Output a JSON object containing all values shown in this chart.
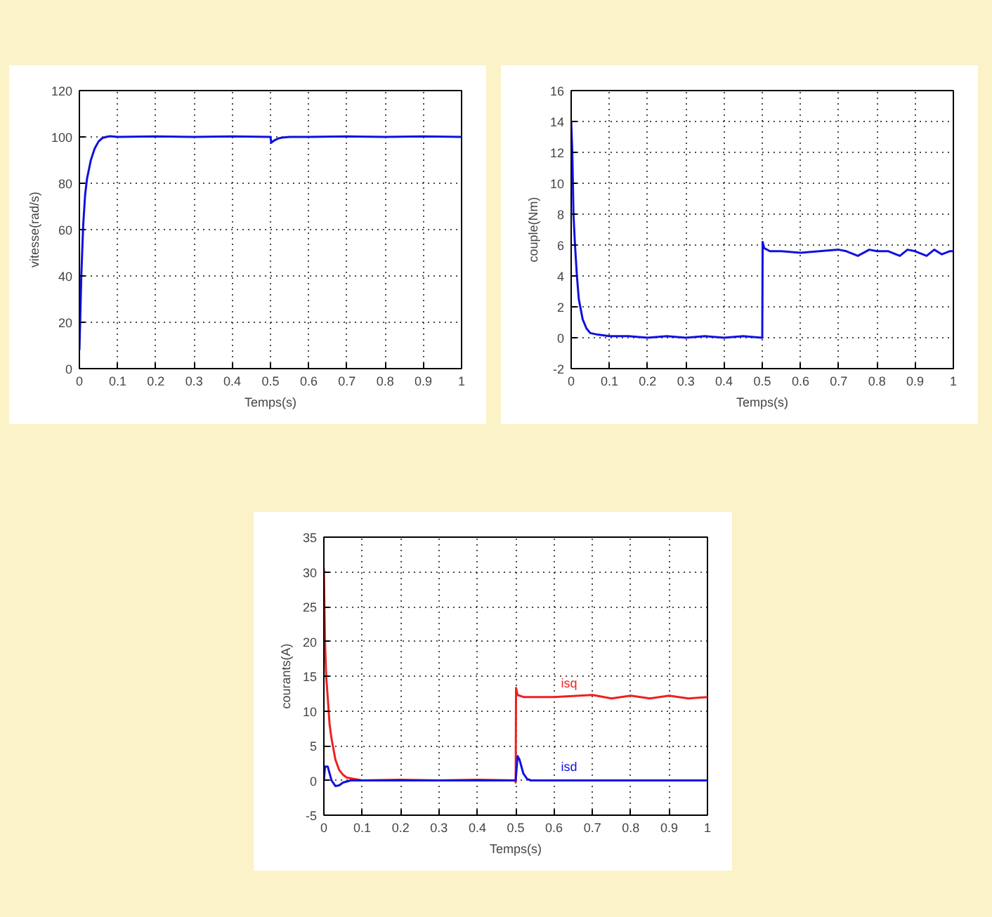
{
  "chart_data": [
    {
      "type": "line",
      "xlabel": "Temps(s)",
      "ylabel": "vitesse(rad/s)",
      "xlim": [
        0,
        1
      ],
      "ylim": [
        0,
        120
      ],
      "xticks": [
        0,
        0.1,
        0.2,
        0.3,
        0.4,
        0.5,
        0.6,
        0.7,
        0.8,
        0.9,
        1
      ],
      "yticks": [
        0,
        20,
        40,
        60,
        80,
        100,
        120
      ],
      "grid": true,
      "line_style": "solid",
      "series": [
        {
          "color": "#1010e0",
          "x": [
            0,
            0.002,
            0.005,
            0.01,
            0.015,
            0.02,
            0.03,
            0.04,
            0.05,
            0.06,
            0.07,
            0.08,
            0.1,
            0.2,
            0.3,
            0.4,
            0.5,
            0.502,
            0.51,
            0.52,
            0.53,
            0.55,
            0.6,
            0.7,
            0.8,
            0.9,
            1
          ],
          "values": [
            8,
            20,
            40,
            62,
            75,
            82,
            90,
            95,
            98,
            99.5,
            100,
            100.3,
            100,
            100.2,
            100,
            100.2,
            100,
            97.5,
            98.5,
            99.3,
            99.7,
            100,
            100,
            100.2,
            100,
            100.2,
            100
          ]
        }
      ]
    },
    {
      "type": "line",
      "xlabel": "Temps(s)",
      "ylabel": "couple(Nm)",
      "xlim": [
        0,
        1
      ],
      "ylim": [
        -2,
        16
      ],
      "xticks": [
        0,
        0.1,
        0.2,
        0.3,
        0.4,
        0.5,
        0.6,
        0.7,
        0.8,
        0.9,
        1
      ],
      "yticks": [
        -2,
        0,
        2,
        4,
        6,
        8,
        10,
        12,
        14,
        16
      ],
      "grid": true,
      "line_style": "solid",
      "series": [
        {
          "color": "#1010e0",
          "x": [
            0,
            0.003,
            0.006,
            0.01,
            0.015,
            0.02,
            0.03,
            0.04,
            0.05,
            0.07,
            0.1,
            0.12,
            0.15,
            0.2,
            0.25,
            0.3,
            0.35,
            0.4,
            0.45,
            0.499,
            0.5,
            0.501,
            0.505,
            0.52,
            0.55,
            0.6,
            0.65,
            0.7,
            0.72,
            0.75,
            0.78,
            0.8,
            0.83,
            0.86,
            0.88,
            0.9,
            0.93,
            0.95,
            0.97,
            0.99,
            1
          ],
          "values": [
            14,
            12,
            8,
            6,
            4,
            2.5,
            1.2,
            0.6,
            0.3,
            0.2,
            0.1,
            0.1,
            0.1,
            0,
            0.1,
            0,
            0.1,
            0,
            0.1,
            0,
            0,
            6.2,
            5.8,
            5.6,
            5.6,
            5.5,
            5.6,
            5.7,
            5.6,
            5.3,
            5.7,
            5.6,
            5.6,
            5.3,
            5.7,
            5.6,
            5.3,
            5.7,
            5.4,
            5.6,
            5.6
          ]
        }
      ]
    },
    {
      "type": "line",
      "xlabel": "Temps(s)",
      "ylabel": "courants(A)",
      "xlim": [
        0,
        1
      ],
      "ylim": [
        -5,
        35
      ],
      "xticks": [
        0,
        0.1,
        0.2,
        0.3,
        0.4,
        0.5,
        0.6,
        0.7,
        0.8,
        0.9,
        1
      ],
      "yticks": [
        -5,
        0,
        5,
        10,
        15,
        20,
        25,
        30,
        35
      ],
      "grid": true,
      "line_style": "solid",
      "series": [
        {
          "name": "isq",
          "color": "#ee2020",
          "x": [
            0,
            0.003,
            0.006,
            0.01,
            0.015,
            0.02,
            0.03,
            0.04,
            0.05,
            0.06,
            0.08,
            0.1,
            0.2,
            0.3,
            0.4,
            0.499,
            0.5,
            0.501,
            0.505,
            0.52,
            0.6,
            0.7,
            0.75,
            0.8,
            0.85,
            0.9,
            0.95,
            1
          ],
          "values": [
            30.5,
            20,
            15,
            12,
            8,
            6,
            3,
            1.5,
            0.8,
            0.4,
            0.2,
            0,
            0.1,
            0,
            0.1,
            0,
            -0.3,
            13.3,
            12.3,
            12,
            12,
            12.3,
            11.8,
            12.2,
            11.8,
            12.2,
            11.8,
            12
          ]
        },
        {
          "name": "isd",
          "color": "#1010e0",
          "x": [
            0,
            0.003,
            0.01,
            0.015,
            0.02,
            0.03,
            0.04,
            0.05,
            0.07,
            0.1,
            0.5,
            0.505,
            0.51,
            0.52,
            0.53,
            0.54,
            1
          ],
          "values": [
            0,
            2,
            2,
            1,
            0,
            -0.8,
            -0.7,
            -0.3,
            0,
            0,
            0,
            3.5,
            3,
            1,
            0.2,
            0,
            0
          ]
        }
      ]
    }
  ]
}
